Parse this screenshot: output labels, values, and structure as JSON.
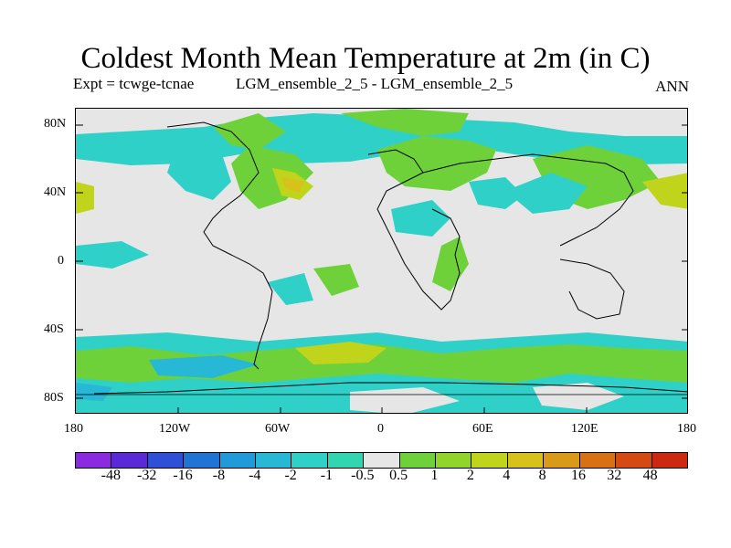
{
  "chart_data": {
    "type": "heatmap",
    "title": "Coldest Month Mean Temperature at 2m (in C)",
    "subtitle_left": "Expt = tcwge-tcnae",
    "subtitle_center": "LGM_ensemble_2_5 - LGM_ensemble_2_5",
    "subtitle_right": "ANN",
    "x_ticks": [
      "180",
      "120W",
      "60W",
      "0",
      "60E",
      "120E",
      "180"
    ],
    "y_ticks": [
      "80N",
      "40N",
      "0",
      "40S",
      "80S"
    ],
    "colorbar": {
      "levels": [
        "-48",
        "-32",
        "-16",
        "-8",
        "-4",
        "-2",
        "-1",
        "-0.5",
        "0.5",
        "1",
        "2",
        "4",
        "8",
        "16",
        "32",
        "48"
      ],
      "colors": [
        "#8a2be2",
        "#5a2ad8",
        "#2f4fd6",
        "#1f74d4",
        "#1e9bd8",
        "#27b8d6",
        "#2fd0c8",
        "#31d6b0",
        "#e6e6e6",
        "#6fd13a",
        "#92d52a",
        "#c0d41c",
        "#d6c21a",
        "#d99a18",
        "#d97014",
        "#d44a12",
        "#cc2a10"
      ]
    }
  },
  "colors": {
    "land_fill": "#e6e6e6",
    "coast": "#000000"
  }
}
